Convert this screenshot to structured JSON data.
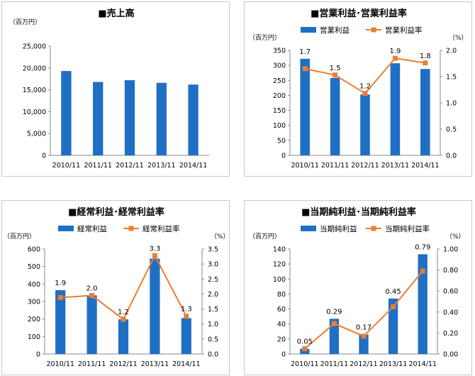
{
  "chart_data": [
    {
      "type": "bar",
      "title": "■売上高",
      "unit_left": "（百万円）",
      "categories": [
        "2010/11",
        "2011/11",
        "2012/11",
        "2013/11",
        "2014/11"
      ],
      "series": [
        {
          "values": [
            19300,
            16800,
            17200,
            16600,
            16200
          ],
          "color": "#1f6fc5"
        }
      ],
      "ylim": [
        0,
        25000
      ],
      "yticks": [
        "0",
        "5,000",
        "10,000",
        "15,000",
        "20,000",
        "25,000"
      ],
      "grid": false
    },
    {
      "type": "bar+line",
      "title": "■営業利益･営業利益率",
      "unit_left": "（百万円）",
      "unit_right": "（%）",
      "categories": [
        "2010/11",
        "2011/11",
        "2012/11",
        "2013/11",
        "2014/11"
      ],
      "series": [
        {
          "name": "営業利益",
          "type": "bar",
          "axis": "left",
          "values": [
            322,
            258,
            203,
            307,
            288
          ],
          "color": "#1f6fc5"
        },
        {
          "name": "営業利益率",
          "type": "line",
          "axis": "right",
          "values": [
            1.65,
            1.53,
            1.18,
            1.85,
            1.76
          ],
          "labels": [
            "1.7",
            "1.5",
            "1.2",
            "1.9",
            "1.8"
          ],
          "color": "#ed7d31"
        }
      ],
      "ylim": [
        0,
        350
      ],
      "yticks": [
        "0",
        "50",
        "100",
        "150",
        "200",
        "250",
        "300",
        "350"
      ],
      "y2lim": [
        0,
        2.0
      ],
      "y2ticks": [
        "0.0",
        "0.5",
        "1.0",
        "1.5",
        "2.0"
      ]
    },
    {
      "type": "bar+line",
      "title": "■経常利益･経常利益率",
      "unit_left": "（百万円）",
      "unit_right": "（%）",
      "categories": [
        "2010/11",
        "2011/11",
        "2012/11",
        "2013/11",
        "2014/11"
      ],
      "series": [
        {
          "name": "経常利益",
          "type": "bar",
          "axis": "left",
          "values": [
            365,
            335,
            198,
            545,
            205
          ],
          "color": "#1f6fc5"
        },
        {
          "name": "経常利益率",
          "type": "line",
          "axis": "right",
          "values": [
            1.88,
            1.95,
            1.16,
            3.28,
            1.26
          ],
          "labels": [
            "1.9",
            "2.0",
            "1.2",
            "3.3",
            "1.3"
          ],
          "color": "#ed7d31"
        }
      ],
      "ylim": [
        0,
        600
      ],
      "yticks": [
        "0",
        "100",
        "200",
        "300",
        "400",
        "500",
        "600"
      ],
      "y2lim": [
        0,
        3.5
      ],
      "y2ticks": [
        "0.0",
        "0.5",
        "1.0",
        "1.5",
        "2.0",
        "2.5",
        "3.0",
        "3.5"
      ]
    },
    {
      "type": "bar+line",
      "title": "■当期純利益･当期純利益率",
      "unit_left": "（百万円）",
      "unit_right": "（%）",
      "categories": [
        "2010/11",
        "2011/11",
        "2012/11",
        "2013/11",
        "2014/11"
      ],
      "series": [
        {
          "name": "当期純利益",
          "type": "bar",
          "axis": "left",
          "values": [
            7,
            47,
            26,
            74,
            133
          ],
          "color": "#1f6fc5"
        },
        {
          "name": "当期純利益率",
          "type": "line",
          "axis": "right",
          "values": [
            0.05,
            0.29,
            0.17,
            0.45,
            0.79
          ],
          "labels": [
            "0.05",
            "0.29",
            "0.17",
            "0.45",
            "0.79"
          ],
          "color": "#ed7d31"
        }
      ],
      "ylim": [
        0,
        140
      ],
      "yticks": [
        "0",
        "20",
        "40",
        "60",
        "80",
        "100",
        "120",
        "140"
      ],
      "y2lim": [
        0,
        1.0
      ],
      "y2ticks": [
        "0.00",
        "0.20",
        "0.40",
        "0.60",
        "0.80",
        "1.00"
      ]
    }
  ]
}
